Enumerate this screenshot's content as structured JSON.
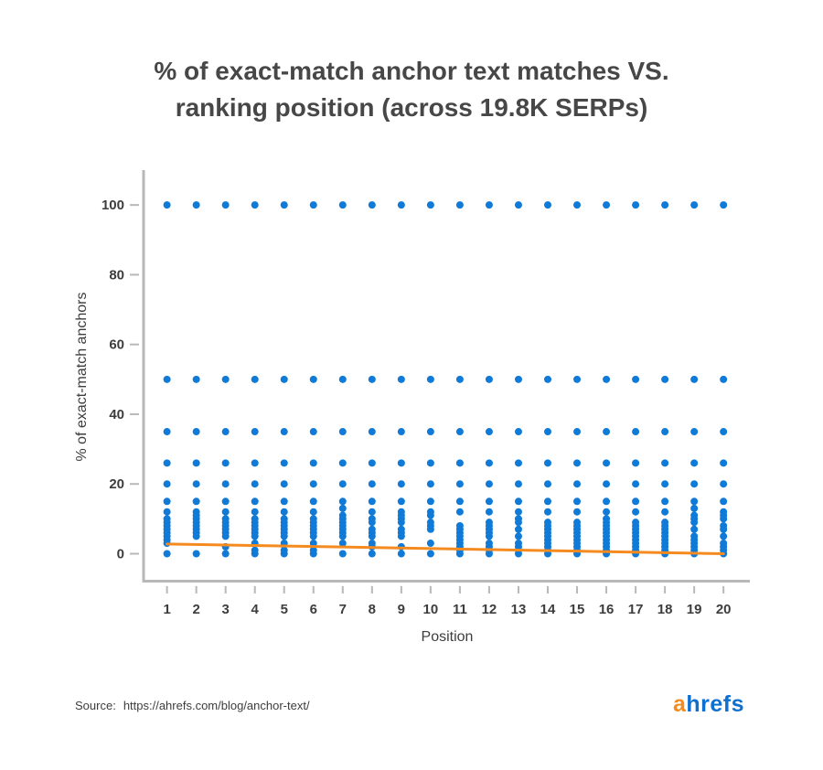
{
  "chart_data": {
    "type": "scatter",
    "title_line1": "% of exact-match anchor text matches VS.",
    "title_line2": "ranking position (across 19.8K SERPs)",
    "xlabel": "Position",
    "ylabel": "% of exact-match anchors",
    "xlim": [
      0.2,
      20.9
    ],
    "ylim": [
      -8,
      110
    ],
    "x_ticks": [
      1,
      2,
      3,
      4,
      5,
      6,
      7,
      8,
      9,
      10,
      11,
      12,
      13,
      14,
      15,
      16,
      17,
      18,
      19,
      20
    ],
    "y_ticks": [
      0,
      20,
      40,
      60,
      80,
      100
    ],
    "colors": {
      "points": "#0f7ad8",
      "trend": "#f58a1f",
      "axis": "#b8b8b8"
    },
    "common_values": [
      0,
      20,
      26,
      35,
      50,
      100
    ],
    "low_values_by_position": {
      "1": [
        15,
        12,
        10,
        9,
        8,
        7,
        6,
        5,
        4,
        3
      ],
      "2": [
        15,
        12,
        11,
        10,
        9,
        8,
        7,
        6,
        5
      ],
      "3": [
        15,
        12,
        10,
        9,
        8,
        7,
        6,
        5,
        2
      ],
      "4": [
        15,
        12,
        10,
        9,
        8,
        7,
        6,
        5,
        3,
        1
      ],
      "5": [
        15,
        12,
        10,
        9,
        8,
        7,
        6,
        5,
        3,
        1
      ],
      "6": [
        15,
        12,
        10,
        9,
        8,
        7,
        6,
        5,
        3,
        1
      ],
      "7": [
        15,
        13,
        11,
        10,
        9,
        8,
        7,
        6,
        5,
        3
      ],
      "8": [
        15,
        12,
        10,
        9,
        7,
        6,
        5,
        3,
        2
      ],
      "9": [
        15,
        12,
        11,
        10,
        9,
        7,
        6,
        5,
        2
      ],
      "10": [
        15,
        12,
        11,
        9,
        8,
        7,
        3
      ],
      "11": [
        15,
        12,
        8,
        7,
        6,
        5,
        4,
        3,
        2,
        1
      ],
      "12": [
        15,
        12,
        9,
        8,
        7,
        6,
        5,
        3,
        2,
        1
      ],
      "13": [
        15,
        12,
        10,
        9,
        7,
        5,
        3,
        2,
        1
      ],
      "14": [
        15,
        12,
        9,
        8,
        7,
        6,
        5,
        4,
        3,
        2,
        1
      ],
      "15": [
        15,
        12,
        9,
        8,
        7,
        6,
        5,
        4,
        3,
        2,
        1
      ],
      "16": [
        15,
        12,
        10,
        9,
        8,
        7,
        6,
        5,
        4,
        3,
        2,
        1
      ],
      "17": [
        15,
        12,
        9,
        8,
        7,
        6,
        5,
        4,
        3,
        2,
        1
      ],
      "18": [
        15,
        12,
        9,
        8,
        7,
        6,
        5,
        4,
        3,
        2,
        1
      ],
      "19": [
        15,
        13,
        11,
        10,
        9,
        7,
        5,
        4,
        3,
        2,
        1
      ],
      "20": [
        15,
        12,
        11,
        10,
        8,
        7,
        5,
        3,
        2,
        1
      ]
    },
    "trendline": {
      "x": [
        1,
        20
      ],
      "y": [
        2.8,
        0
      ]
    }
  },
  "footer": {
    "source_label": "Source:",
    "source_url": "https://ahrefs.com/blog/anchor-text/"
  },
  "logo": {
    "first": "a",
    "rest": "hrefs"
  }
}
